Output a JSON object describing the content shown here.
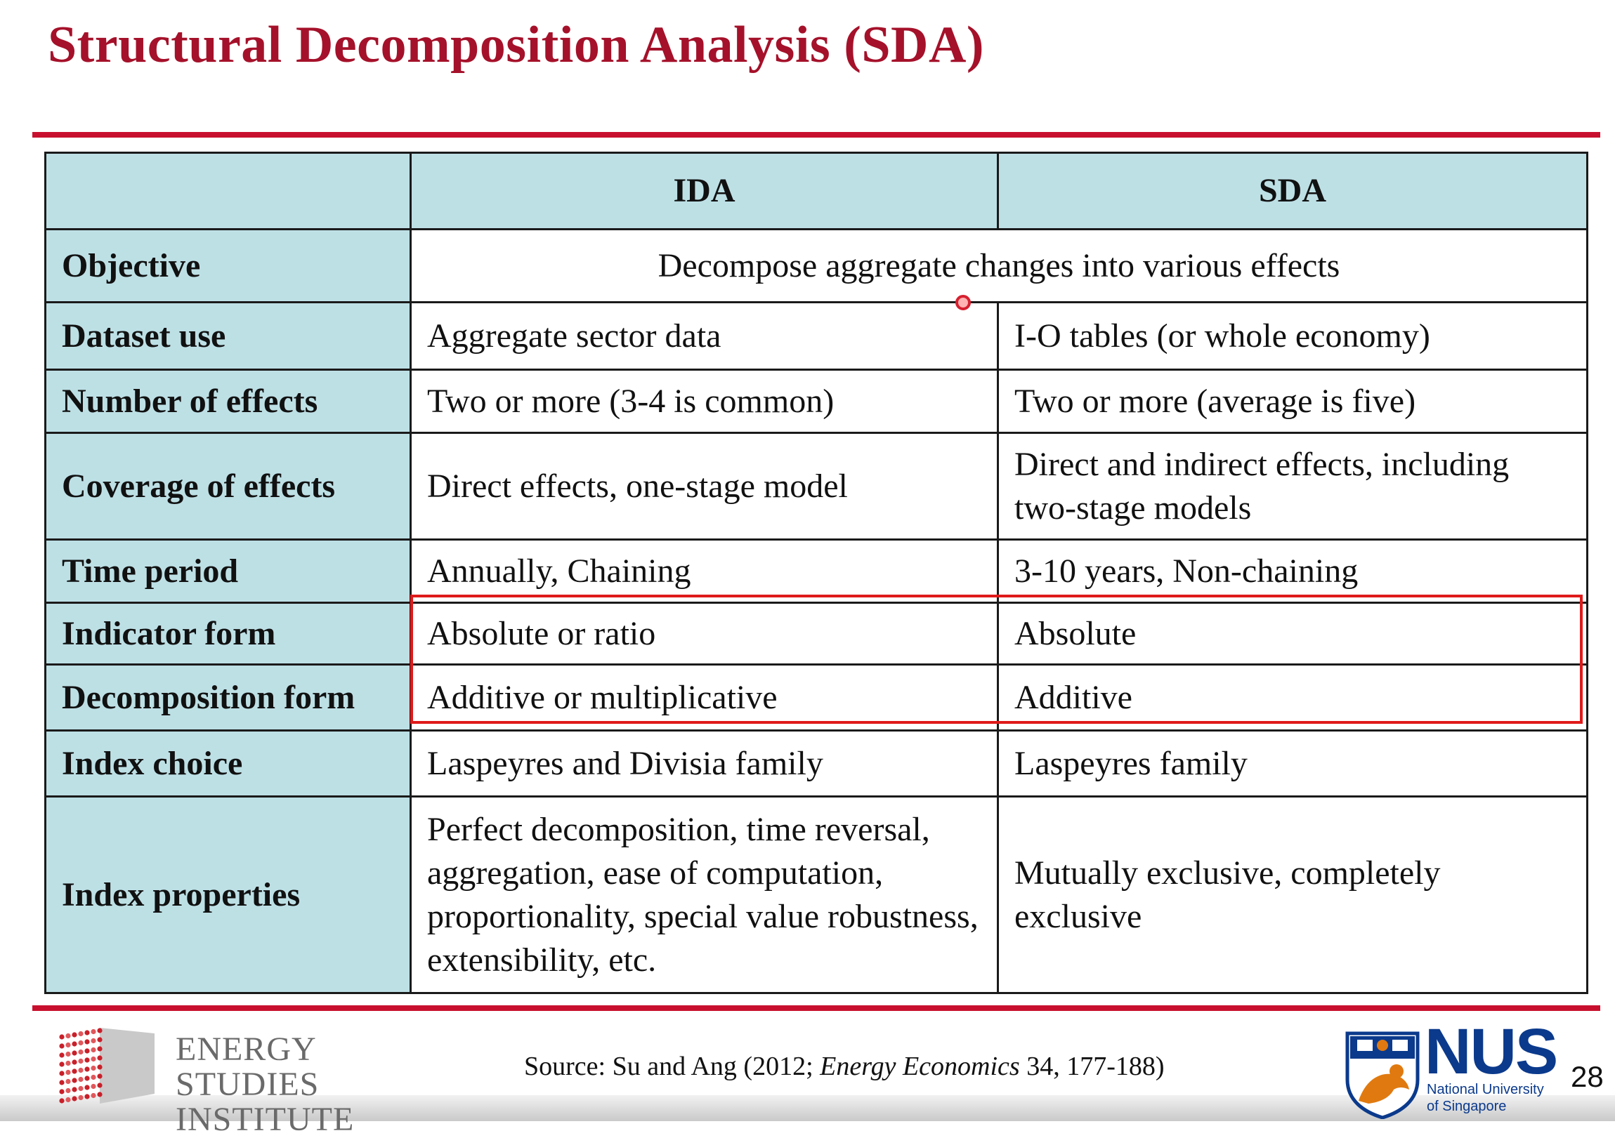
{
  "title": "Structural Decomposition Analysis (SDA)",
  "table": {
    "headers": [
      "",
      "IDA",
      "SDA"
    ],
    "rows": [
      {
        "label": "Objective",
        "ida": "Decompose aggregate changes into various effects",
        "sda": ""
      },
      {
        "label": "Dataset use",
        "ida": "Aggregate sector data",
        "sda": "I-O tables (or whole economy)"
      },
      {
        "label": "Number of effects",
        "ida": "Two or more (3-4 is common)",
        "sda": "Two or more (average is five)"
      },
      {
        "label": "Coverage of effects",
        "ida": "Direct effects, one-stage model",
        "sda": "Direct and indirect effects, including two-stage models"
      },
      {
        "label": "Time period",
        "ida": "Annually, Chaining",
        "sda": "3-10 years, Non-chaining"
      },
      {
        "label": "Indicator form",
        "ida": "Absolute or ratio",
        "sda": "Absolute"
      },
      {
        "label": "Decomposition form",
        "ida": "Additive or multiplicative",
        "sda": "Additive"
      },
      {
        "label": "Index choice",
        "ida": "Laspeyres and Divisia family",
        "sda": "Laspeyres family"
      },
      {
        "label": "Index properties",
        "ida": "Perfect decomposition, time reversal, aggregation, ease of computation, proportionality, special value robustness, extensibility, etc.",
        "sda": "Mutually exclusive, completely exclusive"
      }
    ]
  },
  "footer": {
    "esi_line1": "ENERGY",
    "esi_line2": "STUDIES",
    "esi_line3": "INSTITUTE",
    "source_prefix": "Source: Su and Ang (2012; ",
    "source_journal": "Energy Economics",
    "source_suffix": " 34, 177-188)",
    "nus_word": "NUS",
    "nus_sub1": "National University",
    "nus_sub2": "of Singapore",
    "page_number": "28"
  },
  "colors": {
    "title": "#a5112a",
    "rule": "#c8102e",
    "header_fill": "#bde0e5",
    "highlight": "#e01a1a",
    "nus_blue": "#0b3a8c"
  },
  "icons": [
    "energy-studies-logo-icon",
    "nus-crest-icon",
    "cursor-pointer-icon"
  ]
}
